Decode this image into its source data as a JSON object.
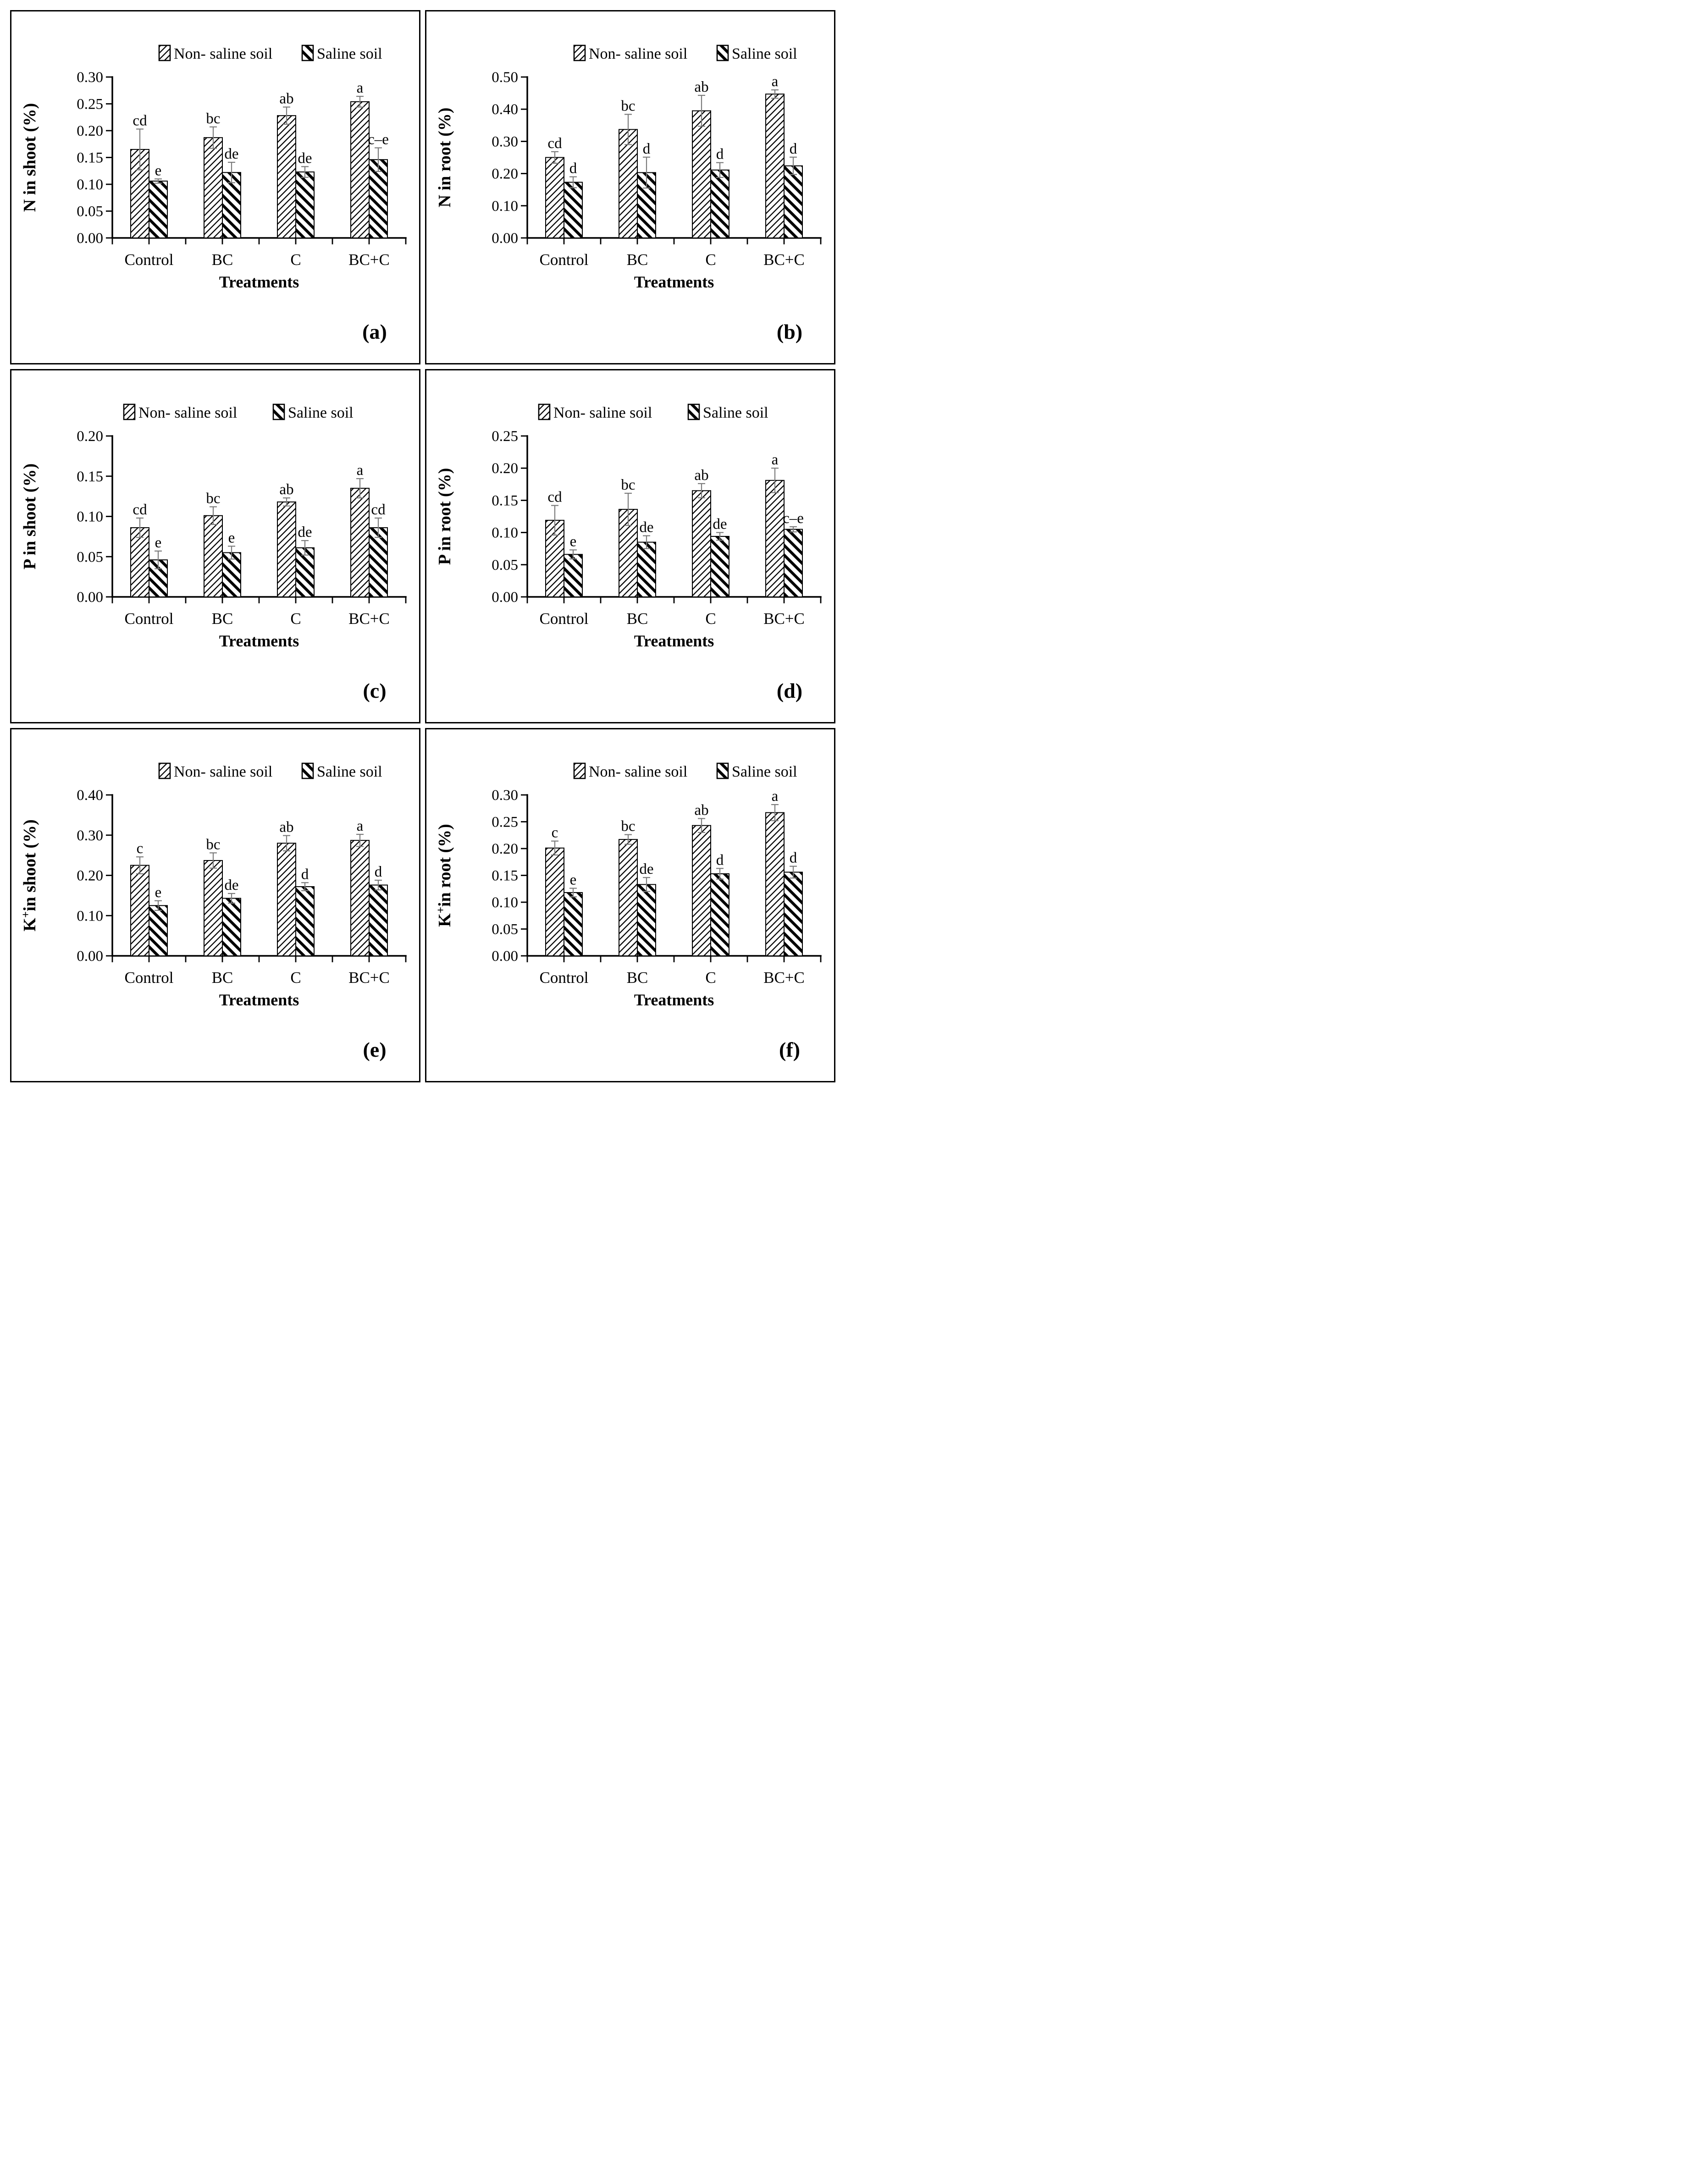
{
  "figure": {
    "description": "Six-panel bar figure comparing nutrient concentrations under Non-saline and Saline soil across treatments",
    "xlabel": "Treatments",
    "legend_labels": [
      "Non- saline soil",
      "Saline soil"
    ],
    "categories": [
      "Control",
      "BC",
      "C",
      "BC+C"
    ],
    "panel_letters": [
      "(a)",
      "(b)",
      "(c)",
      "(d)",
      "(e)",
      "(f)"
    ]
  },
  "colors": {
    "bar_outline": "#000000",
    "hatch": "#000000",
    "error_bar": "#7a7a7a",
    "text": "#000000",
    "background": "#ffffff"
  },
  "chart_data": [
    {
      "type": "bar",
      "panel_label": "(a)",
      "ylabel": "N in shoot (%)",
      "xlabel": "Treatments",
      "categories": [
        "Control",
        "BC",
        "C",
        "BC+C"
      ],
      "legend": [
        "Non- saline soil",
        "Saline soil"
      ],
      "legend_position": "top",
      "grid": false,
      "ylim": [
        0,
        0.3
      ],
      "ytick_step": 0.05,
      "ytick_decimals": 2,
      "series": [
        {
          "name": "Non- saline soil",
          "hatch": "thin-forward-diagonal",
          "values": [
            0.165,
            0.187,
            0.228,
            0.254
          ],
          "errors": [
            0.038,
            0.02,
            0.016,
            0.01
          ],
          "letters": [
            "cd",
            "bc",
            "ab",
            "a"
          ]
        },
        {
          "name": "Saline soil",
          "hatch": "thick-back-diagonal",
          "values": [
            0.106,
            0.122,
            0.123,
            0.146
          ],
          "errors": [
            0.004,
            0.019,
            0.01,
            0.022
          ],
          "letters": [
            "e",
            "de",
            "de",
            "c–e"
          ]
        }
      ]
    },
    {
      "type": "bar",
      "panel_label": "(b)",
      "ylabel": "N in root (%)",
      "xlabel": "Treatments",
      "categories": [
        "Control",
        "BC",
        "C",
        "BC+C"
      ],
      "legend": [
        "Non- saline soil",
        "Saline soil"
      ],
      "legend_position": "top",
      "grid": false,
      "ylim": [
        0,
        0.5
      ],
      "ytick_step": 0.1,
      "ytick_decimals": 2,
      "series": [
        {
          "name": "Non- saline soil",
          "hatch": "thin-forward-diagonal",
          "values": [
            0.25,
            0.337,
            0.395,
            0.447
          ],
          "errors": [
            0.018,
            0.047,
            0.048,
            0.013
          ],
          "letters": [
            "cd",
            "bc",
            "ab",
            "a"
          ]
        },
        {
          "name": "Saline soil",
          "hatch": "thick-back-diagonal",
          "values": [
            0.173,
            0.203,
            0.211,
            0.224
          ],
          "errors": [
            0.017,
            0.048,
            0.023,
            0.027
          ],
          "letters": [
            "d",
            "d",
            "d",
            "d"
          ]
        }
      ]
    },
    {
      "type": "bar",
      "panel_label": "(c)",
      "ylabel": "P in shoot (%)",
      "xlabel": "Treatments",
      "categories": [
        "Control",
        "BC",
        "C",
        "BC+C"
      ],
      "legend": [
        "Non- saline soil",
        "Saline soil"
      ],
      "legend_position": "top",
      "grid": false,
      "ylim": [
        0,
        0.2
      ],
      "ytick_step": 0.05,
      "ytick_decimals": 2,
      "series": [
        {
          "name": "Non- saline soil",
          "hatch": "thin-forward-diagonal",
          "values": [
            0.086,
            0.101,
            0.118,
            0.135
          ],
          "errors": [
            0.012,
            0.011,
            0.005,
            0.012
          ],
          "letters": [
            "cd",
            "bc",
            "ab",
            "a"
          ]
        },
        {
          "name": "Saline soil",
          "hatch": "thick-back-diagonal",
          "values": [
            0.046,
            0.055,
            0.061,
            0.086
          ],
          "errors": [
            0.011,
            0.008,
            0.009,
            0.012
          ],
          "letters": [
            "e",
            "e",
            "de",
            "cd"
          ]
        }
      ]
    },
    {
      "type": "bar",
      "panel_label": "(d)",
      "ylabel": "P in root (%)",
      "xlabel": "Treatments",
      "categories": [
        "Control",
        "BC",
        "C",
        "BC+C"
      ],
      "legend": [
        "Non- saline soil",
        "Saline soil"
      ],
      "legend_position": "top",
      "grid": false,
      "ylim": [
        0,
        0.25
      ],
      "ytick_step": 0.05,
      "ytick_decimals": 2,
      "series": [
        {
          "name": "Non- saline soil",
          "hatch": "thin-forward-diagonal",
          "values": [
            0.119,
            0.136,
            0.165,
            0.181
          ],
          "errors": [
            0.023,
            0.025,
            0.011,
            0.019
          ],
          "letters": [
            "cd",
            "bc",
            "ab",
            "a"
          ]
        },
        {
          "name": "Saline soil",
          "hatch": "thick-back-diagonal",
          "values": [
            0.066,
            0.085,
            0.094,
            0.105
          ],
          "errors": [
            0.007,
            0.01,
            0.006,
            0.004
          ],
          "letters": [
            "e",
            "de",
            "de",
            "c–e"
          ]
        }
      ]
    },
    {
      "type": "bar",
      "panel_label": "(e)",
      "ylabel": "K⁺in shoot (%)",
      "xlabel": "Treatments",
      "categories": [
        "Control",
        "BC",
        "C",
        "BC+C"
      ],
      "legend": [
        "Non- saline soil",
        "Saline soil"
      ],
      "legend_position": "top",
      "grid": false,
      "ylim": [
        0,
        0.4
      ],
      "ytick_step": 0.1,
      "ytick_decimals": 2,
      "series": [
        {
          "name": "Non- saline soil",
          "hatch": "thin-forward-diagonal",
          "values": [
            0.225,
            0.237,
            0.28,
            0.287
          ],
          "errors": [
            0.021,
            0.019,
            0.019,
            0.015
          ],
          "letters": [
            "c",
            "bc",
            "ab",
            "a"
          ]
        },
        {
          "name": "Saline soil",
          "hatch": "thick-back-diagonal",
          "values": [
            0.125,
            0.143,
            0.172,
            0.176
          ],
          "errors": [
            0.012,
            0.012,
            0.01,
            0.012
          ],
          "letters": [
            "e",
            "de",
            "d",
            "d"
          ]
        }
      ]
    },
    {
      "type": "bar",
      "panel_label": "(f)",
      "ylabel": "K⁺in root (%)",
      "xlabel": "Treatments",
      "categories": [
        "Control",
        "BC",
        "C",
        "BC+C"
      ],
      "legend": [
        "Non- saline soil",
        "Saline soil"
      ],
      "legend_position": "top",
      "grid": false,
      "ylim": [
        0,
        0.3
      ],
      "ytick_step": 0.05,
      "ytick_decimals": 2,
      "series": [
        {
          "name": "Non- saline soil",
          "hatch": "thin-forward-diagonal",
          "values": [
            0.201,
            0.217,
            0.243,
            0.267
          ],
          "errors": [
            0.013,
            0.009,
            0.013,
            0.015
          ],
          "letters": [
            "c",
            "bc",
            "ab",
            "a"
          ]
        },
        {
          "name": "Saline soil",
          "hatch": "thick-back-diagonal",
          "values": [
            0.118,
            0.133,
            0.153,
            0.156
          ],
          "errors": [
            0.008,
            0.013,
            0.01,
            0.011
          ],
          "letters": [
            "e",
            "de",
            "d",
            "d"
          ]
        }
      ]
    }
  ]
}
